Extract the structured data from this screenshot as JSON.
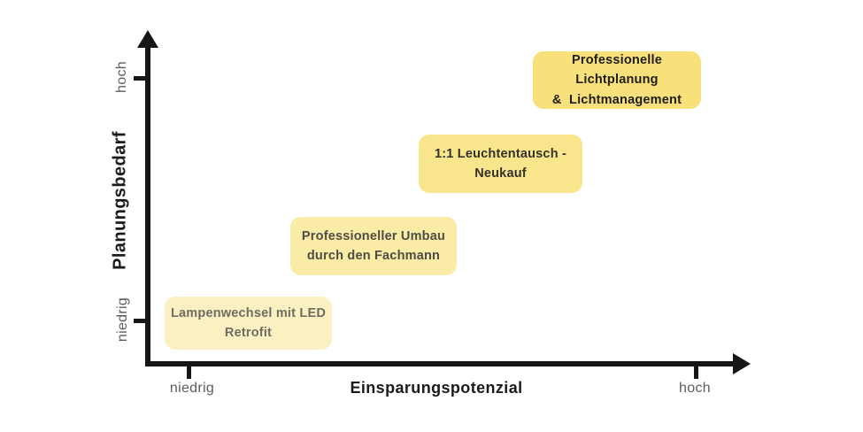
{
  "chart_data": {
    "type": "scatter",
    "title": "",
    "xlabel": "Einsparungspotenzial",
    "ylabel": "Planungsbedarf",
    "x_axis": {
      "tick_labels": [
        "niedrig",
        "hoch"
      ],
      "range_description": "niedrig bis hoch"
    },
    "y_axis": {
      "tick_labels": [
        "niedrig",
        "hoch"
      ],
      "range_description": "niedrig bis hoch"
    },
    "grid": "off",
    "legend": "none",
    "axis_color": "#161616",
    "tick_label_color": "#5c5c5c",
    "points": [
      {
        "line1": "Lampenwechsel mit LED",
        "line2": "Retrofit",
        "x_rel": 0.17,
        "y_rel": 0.13,
        "bg_color": "#FAF0C2",
        "text_color": "#6e6d62"
      },
      {
        "line1": "Professioneller Umbau",
        "line2": "durch den Fachmann",
        "x_rel": 0.38,
        "y_rel": 0.37,
        "bg_color": "#FAEBA7",
        "text_color": "#4e4d44"
      },
      {
        "line1": "1:1 Leuchtentausch -",
        "line2": "Neukauf",
        "x_rel": 0.59,
        "y_rel": 0.61,
        "bg_color": "#F8E58C",
        "text_color": "#34332b"
      },
      {
        "line1": "Professionelle Lichtplanung",
        "line2": "&  Lichtmanagement",
        "x_rel": 0.78,
        "y_rel": 0.86,
        "bg_color": "#F8E07B",
        "text_color": "#1f1e1a"
      }
    ]
  }
}
